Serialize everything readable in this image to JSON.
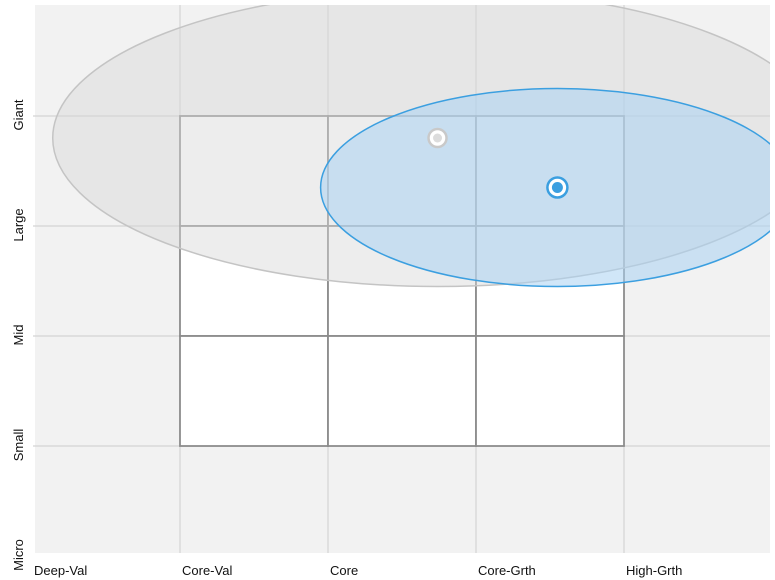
{
  "chart_data": {
    "type": "scatter",
    "title": "",
    "x_categories": [
      "Deep-Val",
      "Core-Val",
      "Core",
      "Core-Grth",
      "High-Grth"
    ],
    "y_categories": [
      "Giant",
      "Large",
      "Mid",
      "Small",
      "Micro"
    ],
    "grid": true,
    "style_box": {
      "x_range": [
        "Core-Val",
        "High-Grth"
      ],
      "y_range": [
        "Giant",
        "Small"
      ]
    },
    "series": [
      {
        "color": "#9e9e9e",
        "fill": "#d8d8d8",
        "centroid": {
          "x": 2.74,
          "y": 0.2
        },
        "zone_half_width": {
          "x": 2.6,
          "y": 1.35
        }
      },
      {
        "color": "#3b9fe0",
        "fill": "#a9d2f2",
        "centroid": {
          "x": 3.55,
          "y": 0.65
        },
        "zone_half_width": {
          "x": 1.6,
          "y": 0.9
        }
      }
    ]
  }
}
